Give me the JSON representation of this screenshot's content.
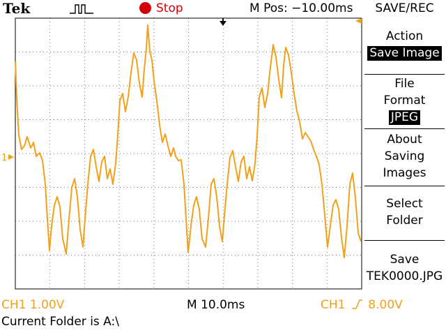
{
  "header": {
    "brand": "Tek",
    "trigger_icon": "pulse-trigger-icon",
    "run_status": "Stop",
    "m_pos": "M Pos: −10.00ms",
    "menu_title": "SAVE/REC"
  },
  "menu": {
    "action": {
      "line1": "Action",
      "value": "Save Image"
    },
    "file_format": {
      "line1": "File",
      "line2": "Format",
      "value": "JPEG"
    },
    "about": {
      "line1": "About",
      "line2": "Saving",
      "line3": "Images"
    },
    "select_folder": {
      "line1": "Select",
      "line2": "Folder"
    },
    "save": {
      "line1": "Save",
      "line2": "TEK0000.JPG"
    }
  },
  "status": {
    "ch1_scale": "CH1  1.00V",
    "timebase": "M 10.0ms",
    "trigger_channel": "CH1",
    "trigger_level": "8.00V",
    "current_folder": "Current Folder is A:\\"
  },
  "display": {
    "channel_marker": "1",
    "trace_color": "#f2a01a",
    "grid_divisions_x": 10,
    "grid_divisions_y": 8
  }
}
